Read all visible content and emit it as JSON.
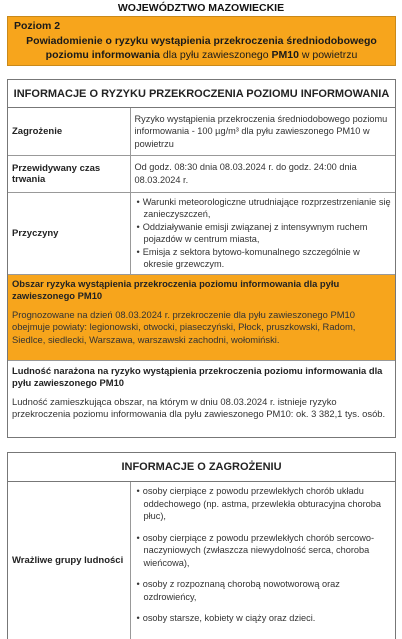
{
  "region": "WOJEWÓDZTWO MAZOWIECKIE",
  "alert": {
    "level": "Poziom 2",
    "message_bold_1": "Powiadomienie o ryzyku wystąpienia przekroczenia średniodobowego poziomu informowania",
    "message_normal": " dla pyłu zawieszonego ",
    "message_bold_2": "PM10",
    "message_normal_2": " w powietrzu"
  },
  "risk_section": {
    "title": "INFORMACJE O RYZYKU PRZEKROCZENIA POZIOMU INFORMOWANIA",
    "rows": [
      {
        "label": "Zagrożenie",
        "value": "Ryzyko wystąpienia przekroczenia średniodobowego poziomu informowania - 100 µg/m³ dla pyłu zawieszonego PM10 w powietrzu"
      },
      {
        "label": "Przewidywany czas trwania",
        "value": "Od godz. 08:30 dnia 08.03.2024 r. do godz. 24:00 dnia 08.03.2024 r."
      }
    ],
    "causes_label": "Przyczyny",
    "causes": [
      "Warunki meteorologiczne utrudniające rozprzestrzenianie się zanieczyszczeń,",
      "Oddziaływanie emisji związanej z intensywnym ruchem pojazdów w centrum miasta,",
      "Emisja z sektora bytowo-komunalnego szczególnie w okresie grzewczym."
    ],
    "area_title": "Obszar ryzyka wystąpienia przekroczenia poziomu informowania dla pyłu zawieszonego PM10",
    "area_body": "Prognozowane na dzień 08.03.2024 r. przekroczenie dla pyłu zawieszonego PM10 obejmuje powiaty: legionowski, otwocki, piaseczyński, Płock, pruszkowski, Radom, Siedlce, siedlecki, Warszawa, warszawski zachodni, wołomiński.",
    "population_title": "Ludność narażona na ryzyko wystąpienia przekroczenia poziomu informowania dla pyłu zawieszonego PM10",
    "population_body": "Ludność zamieszkująca obszar, na którym w dniu 08.03.2024 r. istnieje ryzyko przekroczenia poziomu informowania dla pyłu zawieszonego PM10: ok. 3 382,1 tys. osób."
  },
  "threat_section": {
    "title": "INFORMACJE O ZAGROŻENIU",
    "vulnerable_label": "Wrażliwe grupy ludności",
    "vulnerable": [
      "osoby cierpiące z powodu przewlekłych chorób układu oddechowego (np. astma, przewlekła obturacyjna choroba płuc),",
      "osoby cierpiące z powodu przewlekłych chorób sercowo-naczyniowych (zwłaszcza niewydolność serca, choroba wieńcowa),",
      "osoby z rozpoznaną chorobą nowotworową oraz ozdrowieńcy,",
      "osoby starsze, kobiety w ciąży oraz dzieci."
    ]
  }
}
